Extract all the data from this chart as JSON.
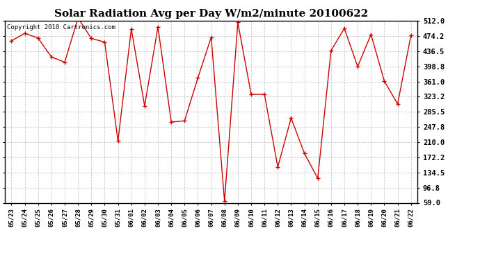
{
  "title": "Solar Radiation Avg per Day W/m2/minute 20100622",
  "copyright": "Copyright 2010 Cartronics.com",
  "x_labels": [
    "05/23",
    "05/24",
    "05/25",
    "05/26",
    "05/27",
    "05/28",
    "05/29",
    "05/30",
    "05/31",
    "06/01",
    "06/02",
    "06/03",
    "06/04",
    "06/05",
    "06/06",
    "06/07",
    "06/08",
    "06/09",
    "06/10",
    "06/11",
    "06/12",
    "06/13",
    "06/14",
    "06/15",
    "06/16",
    "06/17",
    "06/18",
    "06/19",
    "06/20",
    "06/21",
    "06/22"
  ],
  "y_values": [
    462,
    481,
    469,
    422,
    409,
    519,
    468,
    459,
    213,
    492,
    300,
    497,
    260,
    263,
    370,
    471,
    63,
    508,
    329,
    329,
    148,
    270,
    182,
    120,
    438,
    493,
    398,
    478,
    362,
    305,
    476
  ],
  "y_ticks": [
    59.0,
    96.8,
    134.5,
    172.2,
    210.0,
    247.8,
    285.5,
    323.2,
    361.0,
    398.8,
    436.5,
    474.2,
    512.0
  ],
  "line_color": "#cc0000",
  "marker": "+",
  "marker_size": 5,
  "marker_color": "#cc0000",
  "bg_color": "#ffffff",
  "grid_color": "#cccccc",
  "title_fontsize": 11,
  "copyright_fontsize": 6.5,
  "tick_fontsize": 7.5,
  "xtick_fontsize": 6.5
}
